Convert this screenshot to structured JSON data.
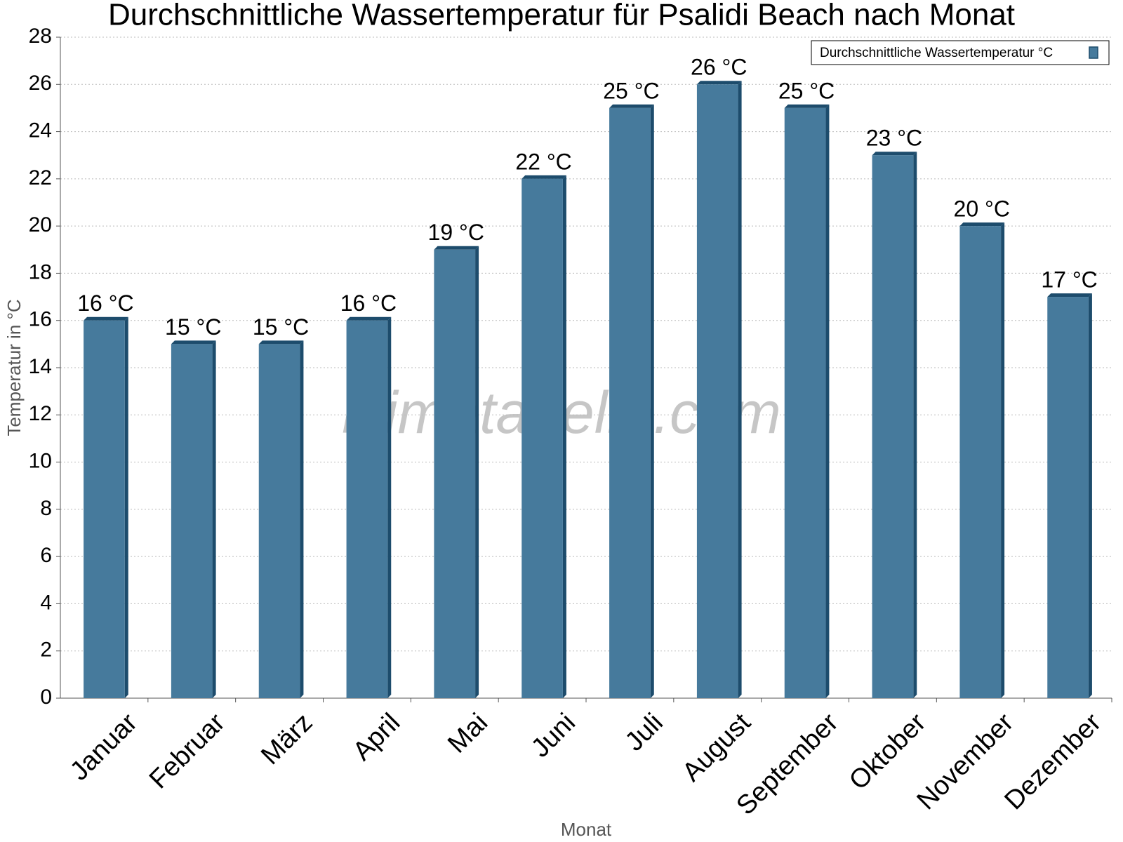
{
  "chart_data": {
    "type": "bar",
    "title": "Durchschnittliche Wassertemperatur für Psalidi Beach nach Monat",
    "x_label": "Monat",
    "y_label": "Temperatur in °C",
    "watermark": "klimatabelle.com",
    "categories": [
      "Januar",
      "Februar",
      "März",
      "April",
      "Mai",
      "Juni",
      "Juli",
      "August",
      "September",
      "Oktober",
      "November",
      "Dezember"
    ],
    "series": [
      {
        "name": "Durchschnittliche Wassertemperatur °C",
        "color": "#467a9c",
        "values": [
          16,
          15,
          15,
          16,
          19,
          22,
          25,
          26,
          25,
          23,
          20,
          17
        ],
        "value_labels": [
          "16 °C",
          "15 °C",
          "15 °C",
          "16 °C",
          "19 °C",
          "22 °C",
          "25 °C",
          "26 °C",
          "25 °C",
          "23 °C",
          "20 °C",
          "17 °C"
        ]
      }
    ],
    "ylim": [
      0,
      28
    ],
    "yticks": [
      0,
      2,
      4,
      6,
      8,
      10,
      12,
      14,
      16,
      18,
      20,
      22,
      24,
      26,
      28
    ],
    "grid": true,
    "legend": "top-right"
  }
}
